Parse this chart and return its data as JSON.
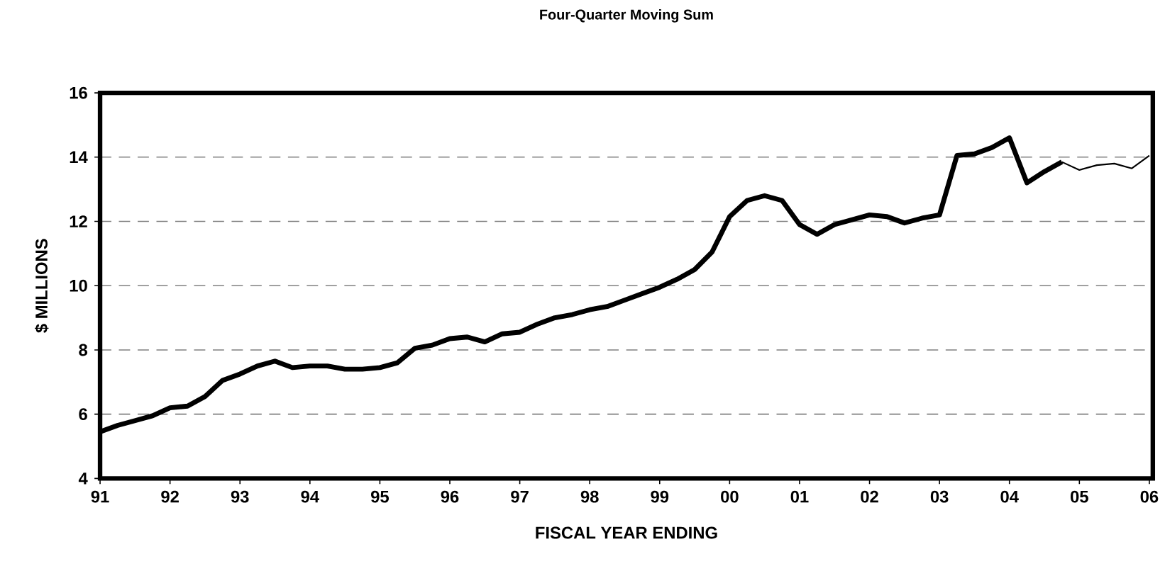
{
  "chart_data": {
    "type": "line",
    "title": "Four-Quarter Moving Sum",
    "xlabel": "FISCAL YEAR ENDING",
    "ylabel": "$ MILLIONS",
    "xlim": [
      1991,
      2006.05
    ],
    "ylim": [
      4,
      16
    ],
    "xticks": [
      {
        "value": 1991,
        "label": "91"
      },
      {
        "value": 1992,
        "label": "92"
      },
      {
        "value": 1993,
        "label": "93"
      },
      {
        "value": 1994,
        "label": "94"
      },
      {
        "value": 1995,
        "label": "95"
      },
      {
        "value": 1996,
        "label": "96"
      },
      {
        "value": 1997,
        "label": "97"
      },
      {
        "value": 1998,
        "label": "98"
      },
      {
        "value": 1999,
        "label": "99"
      },
      {
        "value": 2000,
        "label": "00"
      },
      {
        "value": 2001,
        "label": "01"
      },
      {
        "value": 2002,
        "label": "02"
      },
      {
        "value": 2003,
        "label": "03"
      },
      {
        "value": 2004,
        "label": "04"
      },
      {
        "value": 2005,
        "label": "05"
      },
      {
        "value": 2006,
        "label": "06"
      }
    ],
    "yticks": [
      4,
      6,
      8,
      10,
      12,
      14,
      16
    ],
    "grid": "y",
    "marker": "none",
    "line_style": "solid",
    "series": [
      {
        "color": "#000000",
        "x": [
          1991,
          1991.25,
          1991.5,
          1991.75,
          1992,
          1992.25,
          1992.5,
          1992.75,
          1993,
          1993.25,
          1993.5,
          1993.75,
          1994,
          1994.25,
          1994.5,
          1994.75,
          1995,
          1995.25,
          1995.5,
          1995.75,
          1996,
          1996.25,
          1996.5,
          1996.75,
          1997,
          1997.25,
          1997.5,
          1997.75,
          1998,
          1998.25,
          1998.5,
          1998.75,
          1999,
          1999.25,
          1999.5,
          1999.75,
          2000,
          2000.25,
          2000.5,
          2000.75,
          2001,
          2001.25,
          2001.5,
          2001.75,
          2002,
          2002.25,
          2002.5,
          2002.75,
          2003,
          2003.25,
          2003.5,
          2003.75,
          2004,
          2004.25,
          2004.5,
          2004.75
        ],
        "values": [
          5.45,
          5.65,
          5.8,
          5.95,
          6.2,
          6.25,
          6.55,
          7.05,
          7.25,
          7.5,
          7.65,
          7.45,
          7.5,
          7.5,
          7.4,
          7.4,
          7.45,
          7.6,
          8.05,
          8.15,
          8.35,
          8.4,
          8.25,
          8.5,
          8.55,
          8.8,
          9.0,
          9.1,
          9.25,
          9.35,
          9.55,
          9.75,
          9.95,
          10.2,
          10.5,
          11.05,
          12.15,
          12.65,
          12.8,
          12.65,
          11.9,
          11.6,
          11.9,
          12.05,
          12.2,
          12.15,
          11.95,
          12.1,
          12.2,
          14.05,
          14.1,
          14.3,
          14.6,
          13.2,
          13.55,
          13.85
        ]
      },
      {
        "color": "#000000",
        "x": [
          2004.75,
          2005,
          2005.25,
          2005.5,
          2005.75,
          2006
        ],
        "values": [
          13.85,
          13.6,
          13.75,
          13.8,
          13.65,
          14.05
        ]
      }
    ]
  }
}
